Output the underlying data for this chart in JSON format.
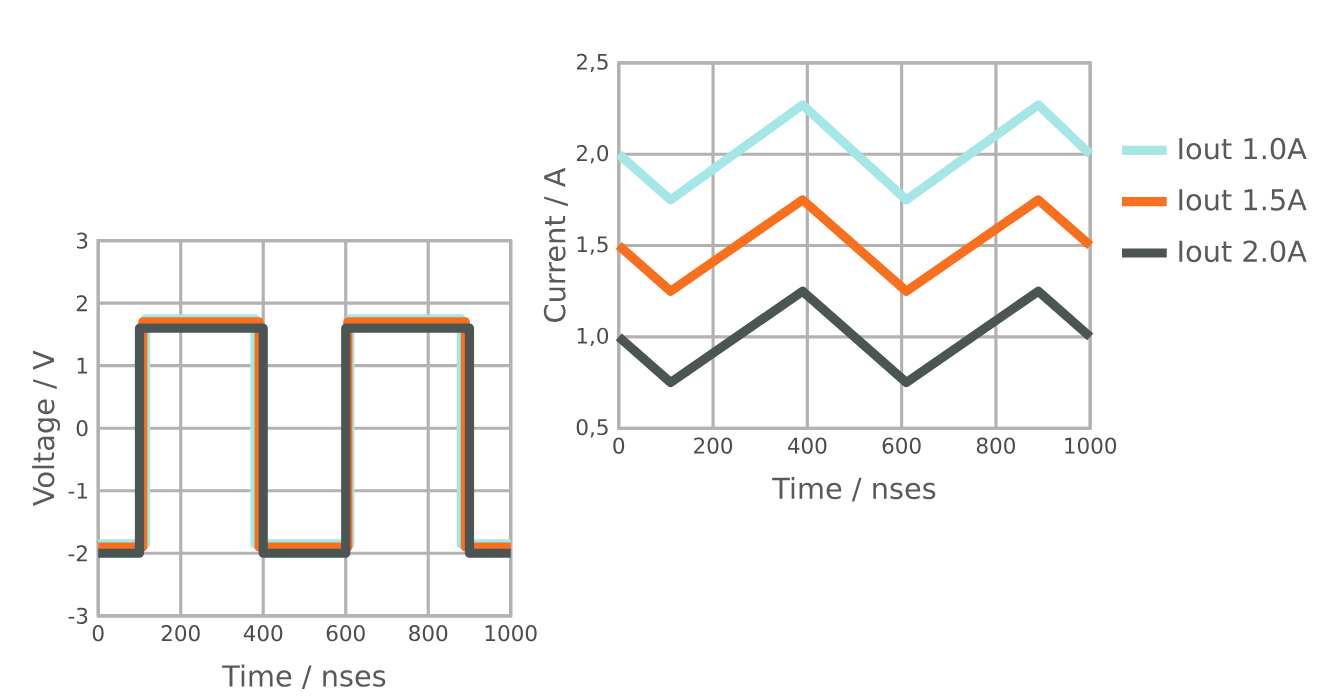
{
  "chart_data": [
    {
      "type": "line",
      "xlabel": "Time / nses",
      "ylabel": "Voltage / V",
      "xlim": [
        0,
        1000
      ],
      "ylim": [
        -3,
        3
      ],
      "xticks": [
        0,
        200,
        400,
        600,
        800,
        1000
      ],
      "yticks": [
        -3,
        -2,
        -1,
        0,
        1,
        2,
        3
      ],
      "grid": true,
      "legend": false,
      "marker": "none",
      "line_style": "solid",
      "series": [
        {
          "color": "#a5e6e6",
          "x": [
            0,
            115,
            115,
            380,
            380,
            610,
            610,
            880,
            880,
            1000
          ],
          "values": [
            -1.85,
            -1.85,
            1.75,
            1.75,
            -1.85,
            -1.85,
            1.75,
            1.75,
            -1.85,
            -1.85
          ]
        },
        {
          "color": "#f86f1e",
          "x": [
            0,
            108,
            108,
            390,
            390,
            605,
            605,
            890,
            890,
            1000
          ],
          "values": [
            -1.9,
            -1.9,
            1.7,
            1.7,
            -1.9,
            -1.9,
            1.7,
            1.7,
            -1.9,
            -1.9
          ]
        },
        {
          "color": "#4a5554",
          "x": [
            0,
            100,
            100,
            400,
            400,
            600,
            600,
            900,
            900,
            1000
          ],
          "values": [
            -2,
            -2,
            1.6,
            1.6,
            -2,
            -2,
            1.6,
            1.6,
            -2,
            -2
          ]
        }
      ]
    },
    {
      "type": "line",
      "xlabel": "Time / nses",
      "ylabel": "Current / A",
      "xlim": [
        0,
        1000
      ],
      "ylim": [
        0.5,
        2.5
      ],
      "xticks": [
        0,
        200,
        400,
        600,
        800,
        1000
      ],
      "yticks": [
        {
          "value": 0.5,
          "label": "0,5"
        },
        {
          "value": 1.0,
          "label": "1,0"
        },
        {
          "value": 1.5,
          "label": "1,5"
        },
        {
          "value": 2.0,
          "label": "2,0"
        },
        {
          "value": 2.5,
          "label": "2,5"
        }
      ],
      "grid": true,
      "legend": "right",
      "marker": "none",
      "line_style": "solid",
      "series": [
        {
          "name": "Iout 1.0A",
          "color": "#a5e6e6",
          "x": [
            0,
            110,
            390,
            610,
            890,
            1000
          ],
          "values": [
            2.0,
            1.75,
            2.27,
            1.75,
            2.27,
            2.0
          ]
        },
        {
          "name": "Iout 1.5A",
          "color": "#f86f1e",
          "x": [
            0,
            110,
            390,
            610,
            890,
            1000
          ],
          "values": [
            1.5,
            1.25,
            1.75,
            1.25,
            1.75,
            1.5
          ]
        },
        {
          "name": "Iout 2.0A",
          "color": "#4a5554",
          "x": [
            0,
            110,
            390,
            610,
            890,
            1000
          ],
          "values": [
            1.0,
            0.75,
            1.25,
            0.75,
            1.25,
            1.0
          ]
        }
      ]
    }
  ]
}
